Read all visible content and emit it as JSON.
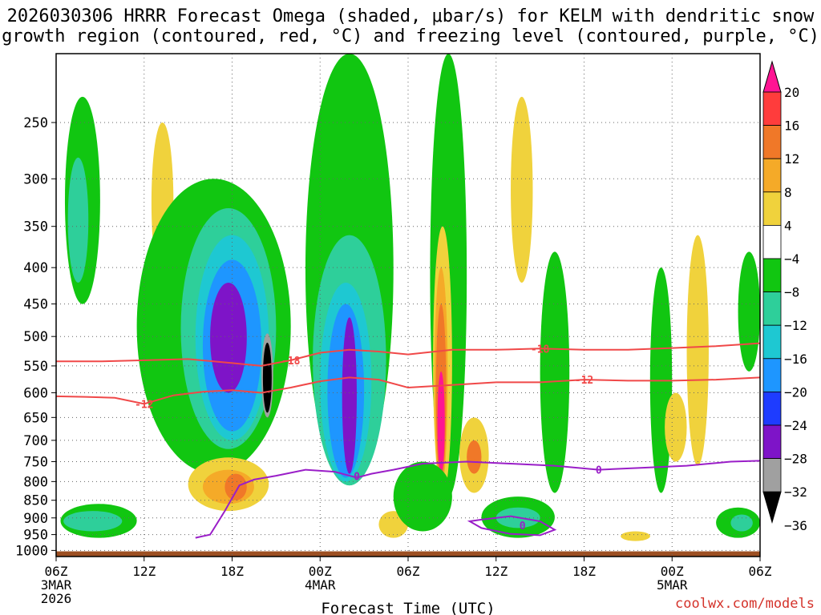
{
  "title_line1": "2026030306 HRRR Forecast Omega (shaded, μbar/s) for KELM with dendritic snow",
  "title_line2": "growth region (contoured, red, °C) and freezing level (contoured, purple, °C)",
  "credit": "coolwx.com/models",
  "chart_data": {
    "type": "heatmap",
    "title": "2026030306 HRRR Forecast Omega (shaded, μbar/s) for KELM with dendritic snow growth region (contoured, red, °C) and freezing level (contoured, purple, °C)",
    "xlabel": "Forecast Time (UTC)",
    "ylabel": "",
    "x_range_hours": [
      0,
      48
    ],
    "y_range_hPa": [
      1020,
      200
    ],
    "y_scale": "log-pressure",
    "grid": true,
    "x_ticks": [
      {
        "hour": 0,
        "label": "06Z",
        "sub1": "3MAR",
        "sub2": "2026"
      },
      {
        "hour": 6,
        "label": "12Z"
      },
      {
        "hour": 12,
        "label": "18Z"
      },
      {
        "hour": 18,
        "label": "00Z",
        "sub1": "4MAR"
      },
      {
        "hour": 24,
        "label": "06Z"
      },
      {
        "hour": 30,
        "label": "12Z"
      },
      {
        "hour": 36,
        "label": "18Z"
      },
      {
        "hour": 42,
        "label": "00Z",
        "sub1": "5MAR"
      },
      {
        "hour": 48,
        "label": "06Z"
      }
    ],
    "y_ticks": [
      250,
      300,
      350,
      400,
      450,
      500,
      550,
      600,
      650,
      700,
      750,
      800,
      850,
      900,
      950,
      1000
    ],
    "colorbar": {
      "labels": [
        "20",
        "16",
        "12",
        "8",
        "4",
        "−4",
        "−8",
        "−12",
        "−16",
        "−20",
        "−24",
        "−28",
        "−32",
        "−36"
      ],
      "colors": [
        "#ff1493",
        "#ff3c3c",
        "#f07828",
        "#f5aa28",
        "#f0d23c",
        "#ffffff",
        "#11c611",
        "#2ecf9a",
        "#1ec8d2",
        "#1e96ff",
        "#1e3cff",
        "#7e14c8",
        "#a0a0a0",
        "#000000"
      ]
    },
    "omega_cells": [
      {
        "t0": 0.6,
        "t1": 3.0,
        "p0": 230,
        "p1": 450,
        "level": -8
      },
      {
        "t0": 0.8,
        "t1": 2.2,
        "p0": 280,
        "p1": 420,
        "level": -12
      },
      {
        "t0": 6.5,
        "t1": 8.0,
        "p0": 250,
        "p1": 420,
        "level": 4
      },
      {
        "t0": 5.5,
        "t1": 16.0,
        "p0": 300,
        "p1": 780,
        "level": -8
      },
      {
        "t0": 8.5,
        "t1": 15.0,
        "p0": 330,
        "p1": 720,
        "level": -12
      },
      {
        "t0": 9.5,
        "t1": 14.5,
        "p0": 360,
        "p1": 700,
        "level": -16
      },
      {
        "t0": 10.0,
        "t1": 14.0,
        "p0": 390,
        "p1": 680,
        "level": -20
      },
      {
        "t0": 10.5,
        "t1": 13.0,
        "p0": 420,
        "p1": 600,
        "level": -28
      },
      {
        "t0": 14.0,
        "t1": 14.8,
        "p0": 495,
        "p1": 650,
        "level": -32
      },
      {
        "t0": 14.1,
        "t1": 14.7,
        "p0": 510,
        "p1": 640,
        "level": -36
      },
      {
        "t0": 17.0,
        "t1": 23.0,
        "p0": 200,
        "p1": 810,
        "level": -8
      },
      {
        "t0": 17.5,
        "t1": 22.5,
        "p0": 360,
        "p1": 810,
        "level": -12
      },
      {
        "t0": 18.0,
        "t1": 21.5,
        "p0": 420,
        "p1": 800,
        "level": -16
      },
      {
        "t0": 18.5,
        "t1": 21.0,
        "p0": 450,
        "p1": 790,
        "level": -20
      },
      {
        "t0": 19.5,
        "t1": 20.5,
        "p0": 470,
        "p1": 780,
        "level": -28
      },
      {
        "t0": 25.5,
        "t1": 28.0,
        "p0": 200,
        "p1": 840,
        "level": -8
      },
      {
        "t0": 25.7,
        "t1": 27.0,
        "p0": 350,
        "p1": 840,
        "level": 4
      },
      {
        "t0": 25.8,
        "t1": 26.7,
        "p0": 400,
        "p1": 820,
        "level": 8
      },
      {
        "t0": 25.9,
        "t1": 26.6,
        "p0": 450,
        "p1": 800,
        "level": 12
      },
      {
        "t0": 26.0,
        "t1": 26.5,
        "p0": 560,
        "p1": 780,
        "level": 20
      },
      {
        "t0": 27.5,
        "t1": 29.5,
        "p0": 650,
        "p1": 830,
        "level": 4
      },
      {
        "t0": 28.0,
        "t1": 29.0,
        "p0": 700,
        "p1": 780,
        "level": 12
      },
      {
        "t0": 31.0,
        "t1": 32.5,
        "p0": 230,
        "p1": 420,
        "level": 4
      },
      {
        "t0": 33.0,
        "t1": 35.0,
        "p0": 380,
        "p1": 830,
        "level": -8
      },
      {
        "t0": 40.5,
        "t1": 42.0,
        "p0": 400,
        "p1": 830,
        "level": -8
      },
      {
        "t0": 41.5,
        "t1": 43.0,
        "p0": 600,
        "p1": 750,
        "level": 4
      },
      {
        "t0": 46.5,
        "t1": 48.0,
        "p0": 380,
        "p1": 560,
        "level": -8
      },
      {
        "t0": 43.0,
        "t1": 44.5,
        "p0": 360,
        "p1": 760,
        "level": 4
      },
      {
        "t0": 0.3,
        "t1": 5.5,
        "p0": 860,
        "p1": 960,
        "level": -8
      },
      {
        "t0": 0.5,
        "t1": 4.5,
        "p0": 880,
        "p1": 940,
        "level": -12
      },
      {
        "t0": 9.0,
        "t1": 14.5,
        "p0": 740,
        "p1": 880,
        "level": 4
      },
      {
        "t0": 10.0,
        "t1": 13.5,
        "p0": 770,
        "p1": 860,
        "level": 8
      },
      {
        "t0": 11.5,
        "t1": 13.0,
        "p0": 780,
        "p1": 850,
        "level": 12
      },
      {
        "t0": 22.0,
        "t1": 24.0,
        "p0": 880,
        "p1": 960,
        "level": 4
      },
      {
        "t0": 23.0,
        "t1": 27.0,
        "p0": 750,
        "p1": 940,
        "level": -8
      },
      {
        "t0": 29.0,
        "t1": 34.0,
        "p0": 840,
        "p1": 960,
        "level": -8
      },
      {
        "t0": 30.0,
        "t1": 33.0,
        "p0": 870,
        "p1": 930,
        "level": -12
      },
      {
        "t0": 45.0,
        "t1": 48.0,
        "p0": 870,
        "p1": 960,
        "level": -8
      },
      {
        "t0": 46.0,
        "t1": 47.5,
        "p0": 890,
        "p1": 940,
        "level": -12
      },
      {
        "t0": 38.5,
        "t1": 40.5,
        "p0": 940,
        "p1": 970,
        "level": 4
      }
    ],
    "dendritic_contours": [
      {
        "label": "-18",
        "t": [
          0,
          3,
          6,
          9,
          12,
          14,
          16,
          18,
          20,
          22,
          24,
          27,
          30,
          33,
          36,
          39,
          42,
          45,
          48
        ],
        "p": [
          542,
          542,
          540,
          538,
          545,
          550,
          540,
          527,
          522,
          525,
          530,
          522,
          522,
          520,
          522,
          522,
          519,
          516,
          511
        ]
      },
      {
        "label": "-12",
        "t": [
          0,
          2,
          4,
          6,
          8,
          10,
          12,
          14,
          16,
          18,
          20,
          22,
          24,
          27,
          30,
          33,
          36,
          39,
          42,
          45,
          48
        ],
        "p": [
          607,
          608,
          610,
          622,
          605,
          598,
          595,
          600,
          590,
          578,
          571,
          575,
          590,
          585,
          580,
          580,
          575,
          577,
          577,
          575,
          571
        ]
      }
    ],
    "freezing_contour": {
      "label": "0",
      "t": [
        9.5,
        10.5,
        11.5,
        12.5,
        13.5,
        15,
        17,
        19,
        20.5,
        21.5,
        23,
        25,
        28,
        31,
        34,
        37,
        40,
        43,
        46,
        48
      ],
      "p": [
        960,
        950,
        880,
        810,
        795,
        785,
        770,
        775,
        790,
        780,
        770,
        755,
        750,
        755,
        760,
        770,
        765,
        760,
        750,
        748
      ]
    },
    "freezing_closed_loop": {
      "label": "0",
      "t": [
        29.0,
        31.0,
        33.0,
        34.0,
        33.0,
        31.0,
        29.0,
        28.2
      ],
      "p": [
        905,
        895,
        910,
        935,
        952,
        948,
        930,
        910
      ]
    }
  }
}
